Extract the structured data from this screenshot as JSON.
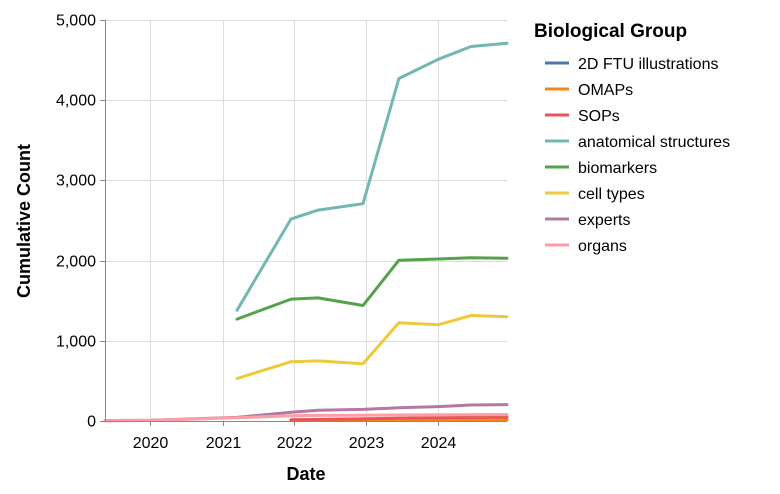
{
  "chart_data": {
    "type": "line",
    "xlabel": "Date",
    "ylabel": "Cumulative Count",
    "x_ticks": [
      "2020",
      "2021",
      "2022",
      "2023",
      "2024"
    ],
    "y_ticks": [
      "0",
      "1,000",
      "2,000",
      "3,000",
      "4,000",
      "5,000"
    ],
    "xlim": [
      "2019-05-15",
      "2024-12-15"
    ],
    "ylim": [
      0,
      5000
    ],
    "grid": true,
    "legend": {
      "title": "Biological Group",
      "position": "right"
    },
    "series": [
      {
        "name": "2D FTU illustrations",
        "color": "#4c78a8",
        "points": [
          [
            "2021-12-15",
            10
          ],
          [
            "2022-05-01",
            12
          ],
          [
            "2023-01-01",
            12
          ],
          [
            "2023-06-01",
            13
          ],
          [
            "2024-01-01",
            14
          ],
          [
            "2024-12-15",
            15
          ]
        ]
      },
      {
        "name": "OMAPs",
        "color": "#f58518",
        "points": [
          [
            "2021-12-15",
            5
          ],
          [
            "2022-05-01",
            8
          ],
          [
            "2023-01-01",
            10
          ],
          [
            "2023-06-01",
            12
          ],
          [
            "2024-01-01",
            14
          ],
          [
            "2024-12-15",
            18
          ]
        ]
      },
      {
        "name": "SOPs",
        "color": "#e45756",
        "points": [
          [
            "2021-12-15",
            15
          ],
          [
            "2022-05-01",
            20
          ],
          [
            "2023-01-01",
            28
          ],
          [
            "2023-06-01",
            35
          ],
          [
            "2024-06-01",
            45
          ],
          [
            "2024-12-15",
            50
          ]
        ]
      },
      {
        "name": "anatomical structures",
        "color": "#72b7b2",
        "points": [
          [
            "2021-03-15",
            1380
          ],
          [
            "2021-12-15",
            2520
          ],
          [
            "2022-05-01",
            2630
          ],
          [
            "2022-12-15",
            2710
          ],
          [
            "2023-06-15",
            4270
          ],
          [
            "2024-01-01",
            4510
          ],
          [
            "2024-06-15",
            4670
          ],
          [
            "2024-12-15",
            4710
          ]
        ]
      },
      {
        "name": "biomarkers",
        "color": "#54a24b",
        "points": [
          [
            "2021-03-15",
            1270
          ],
          [
            "2021-12-15",
            1520
          ],
          [
            "2022-05-01",
            1535
          ],
          [
            "2022-12-15",
            1440
          ],
          [
            "2023-06-15",
            2005
          ],
          [
            "2024-01-01",
            2020
          ],
          [
            "2024-06-15",
            2035
          ],
          [
            "2024-12-15",
            2030
          ]
        ]
      },
      {
        "name": "cell types",
        "color": "#eeca3b",
        "points": [
          [
            "2021-03-15",
            530
          ],
          [
            "2021-12-15",
            740
          ],
          [
            "2022-05-01",
            750
          ],
          [
            "2022-12-15",
            715
          ],
          [
            "2023-06-15",
            1225
          ],
          [
            "2024-01-01",
            1200
          ],
          [
            "2024-06-15",
            1315
          ],
          [
            "2024-12-15",
            1300
          ]
        ]
      },
      {
        "name": "experts",
        "color": "#b279a2",
        "points": [
          [
            "2019-05-15",
            5
          ],
          [
            "2020-01-01",
            10
          ],
          [
            "2021-03-15",
            45
          ],
          [
            "2021-12-15",
            110
          ],
          [
            "2022-05-01",
            135
          ],
          [
            "2022-12-15",
            145
          ],
          [
            "2023-06-15",
            165
          ],
          [
            "2024-01-01",
            180
          ],
          [
            "2024-06-15",
            200
          ],
          [
            "2024-12-15",
            205
          ]
        ]
      },
      {
        "name": "organs",
        "color": "#ff9da6",
        "points": [
          [
            "2019-05-15",
            3
          ],
          [
            "2020-01-01",
            8
          ],
          [
            "2021-03-15",
            40
          ],
          [
            "2021-12-15",
            65
          ],
          [
            "2022-05-01",
            70
          ],
          [
            "2023-01-01",
            72
          ],
          [
            "2023-06-15",
            75
          ],
          [
            "2024-01-01",
            78
          ],
          [
            "2024-12-15",
            80
          ]
        ]
      }
    ]
  }
}
